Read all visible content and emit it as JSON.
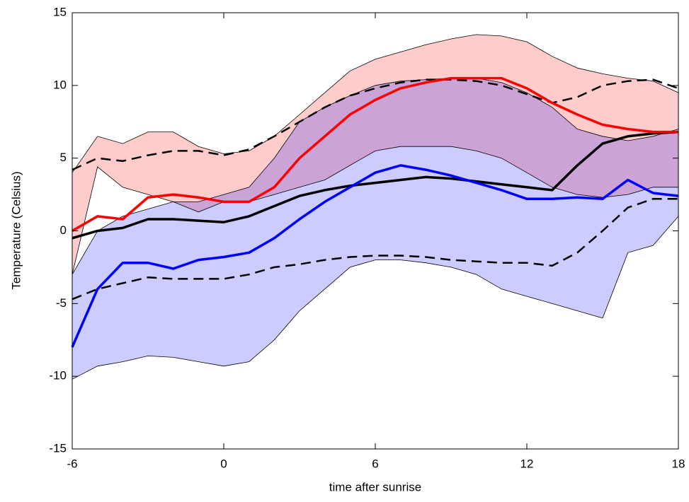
{
  "chart_data": {
    "type": "line",
    "xlabel": "time after sunrise",
    "ylabel": "Temperature (Celsius)",
    "x": [
      -6,
      -5,
      -4,
      -3,
      -2,
      -1,
      0,
      1,
      2,
      3,
      4,
      5,
      6,
      7,
      8,
      9,
      10,
      11,
      12,
      13,
      14,
      15,
      16,
      17,
      18
    ],
    "xlim": [
      -6,
      18
    ],
    "xticks": [
      -6,
      0,
      6,
      12,
      18
    ],
    "ylim": [
      -15,
      15
    ],
    "yticks": [
      -15,
      -10,
      -5,
      0,
      5,
      10,
      15
    ],
    "bands": [
      {
        "color": "#ff0000",
        "edge_color": "#000000",
        "upper": [
          4,
          6.5,
          6,
          6.8,
          6.8,
          5.8,
          5.3,
          5.5,
          6.5,
          8,
          9.5,
          11,
          11.8,
          12.3,
          12.8,
          13.2,
          13.5,
          13.4,
          13,
          12,
          11.2,
          10.8,
          10.5,
          10.3,
          9.5
        ],
        "lower": [
          -3,
          4.4,
          3,
          2.5,
          2,
          1.3,
          2,
          2,
          2.5,
          3,
          3.5,
          4.5,
          5.5,
          5.8,
          5.8,
          5.8,
          5.5,
          5,
          4,
          3,
          2.5,
          2.3,
          2.5,
          3,
          3
        ]
      },
      {
        "color": "#0000ff",
        "edge_color": "#000000",
        "upper": [
          -3,
          0,
          1,
          1.5,
          2,
          2,
          2.5,
          3,
          5,
          7.5,
          8.5,
          9.3,
          10,
          10.3,
          10.4,
          10.5,
          10.5,
          10.2,
          9.5,
          8.5,
          7,
          6.5,
          6.2,
          6.5,
          7
        ],
        "lower": [
          -10.2,
          -9.3,
          -9,
          -8.6,
          -8.7,
          -9,
          -9.3,
          -9,
          -7.5,
          -5.5,
          -4,
          -2.5,
          -2,
          -2,
          -2.2,
          -2.5,
          -3,
          -4,
          -4.5,
          -5,
          -5.5,
          -6,
          -1.5,
          -1,
          1
        ]
      }
    ],
    "series": [
      {
        "color": "#000000",
        "dashed": true,
        "values": [
          4.2,
          5,
          4.8,
          5.2,
          5.5,
          5.5,
          5.2,
          5.6,
          6.5,
          7.5,
          8.5,
          9.3,
          9.8,
          10.2,
          10.4,
          10.4,
          10.3,
          10,
          9.4,
          8.8,
          9.2,
          10,
          10.3,
          10.4,
          9.8
        ]
      },
      {
        "color": "#000000",
        "dashed": true,
        "values": [
          -4.7,
          -4,
          -3.6,
          -3.2,
          -3.3,
          -3.3,
          -3.3,
          -3,
          -2.5,
          -2.3,
          -2,
          -1.8,
          -1.7,
          -1.7,
          -1.8,
          -2,
          -2.1,
          -2.2,
          -2.2,
          -2.4,
          -1.5,
          0,
          1.6,
          2.2,
          2.2
        ]
      },
      {
        "color": "#000000",
        "dashed": false,
        "values": [
          -0.5,
          0,
          0.2,
          0.8,
          0.8,
          0.7,
          0.6,
          1,
          1.7,
          2.4,
          2.8,
          3.1,
          3.3,
          3.5,
          3.7,
          3.6,
          3.4,
          3.2,
          3,
          2.8,
          4.5,
          6,
          6.5,
          6.7,
          6.8
        ]
      },
      {
        "color": "#ff0000",
        "dashed": false,
        "values": [
          0,
          1,
          0.8,
          2.3,
          2.5,
          2.3,
          2,
          2,
          3,
          5,
          6.5,
          8,
          9,
          9.8,
          10.2,
          10.5,
          10.5,
          10.5,
          9.8,
          8.8,
          8,
          7.3,
          7,
          6.8,
          6.8
        ]
      },
      {
        "color": "#0000ff",
        "dashed": false,
        "values": [
          -8,
          -4,
          -2.2,
          -2.2,
          -2.6,
          -2,
          -1.8,
          -1.5,
          -0.5,
          0.8,
          2,
          3,
          4,
          4.5,
          4.2,
          3.8,
          3.3,
          2.8,
          2.2,
          2.2,
          2.3,
          2.2,
          3.5,
          2.6,
          2.4
        ]
      }
    ]
  }
}
